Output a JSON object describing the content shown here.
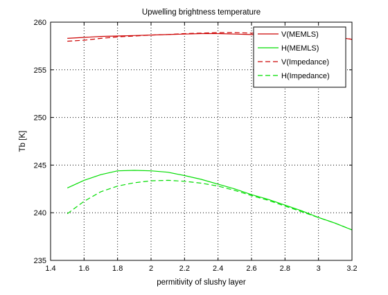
{
  "chart_data": {
    "type": "line",
    "title": "Upwelling brightness temperature",
    "xlabel": "permitivity of slushy layer",
    "ylabel": "Tb [K]",
    "xlim": [
      1.4,
      3.2
    ],
    "ylim": [
      235,
      260
    ],
    "xticks": [
      "1.4",
      "1.6",
      "1.8",
      "2",
      "2.2",
      "2.4",
      "2.6",
      "2.8",
      "3",
      "3.2"
    ],
    "yticks": [
      "235",
      "240",
      "245",
      "250",
      "255",
      "260"
    ],
    "grid": true,
    "legend_position": "top-right",
    "x": [
      1.5,
      1.6,
      1.7,
      1.8,
      1.9,
      2.0,
      2.1,
      2.2,
      2.3,
      2.4,
      2.5,
      2.6,
      2.7,
      2.8,
      2.9,
      3.0,
      3.1,
      3.2
    ],
    "series": [
      {
        "name": "V(MEMLS)",
        "color": "#cc0000",
        "dash": "solid",
        "values": [
          258.3,
          258.4,
          258.5,
          258.55,
          258.6,
          258.65,
          258.7,
          258.75,
          258.8,
          258.8,
          258.75,
          258.7,
          258.65,
          258.6,
          258.55,
          258.5,
          258.45,
          258.2
        ]
      },
      {
        "name": "H(MEMLS)",
        "color": "#00dd00",
        "dash": "solid",
        "values": [
          242.6,
          243.4,
          244.0,
          244.4,
          244.45,
          244.4,
          244.25,
          243.9,
          243.5,
          243.0,
          242.5,
          241.9,
          241.4,
          240.8,
          240.2,
          239.5,
          238.9,
          238.2
        ]
      },
      {
        "name": "V(Impedance)",
        "color": "#cc0000",
        "dash": "dashed",
        "values": [
          258.0,
          258.1,
          258.3,
          258.45,
          258.55,
          258.65,
          258.7,
          258.8,
          258.85,
          258.9,
          258.9,
          258.85,
          258.8,
          258.75,
          258.7,
          258.6,
          258.5,
          258.2
        ]
      },
      {
        "name": "H(Impedance)",
        "color": "#00dd00",
        "dash": "dashed",
        "values": [
          239.9,
          241.2,
          242.2,
          242.8,
          243.15,
          243.35,
          243.4,
          243.3,
          243.1,
          242.8,
          242.35,
          241.8,
          241.3,
          240.7,
          240.1,
          239.5,
          238.9,
          238.2
        ]
      }
    ]
  }
}
